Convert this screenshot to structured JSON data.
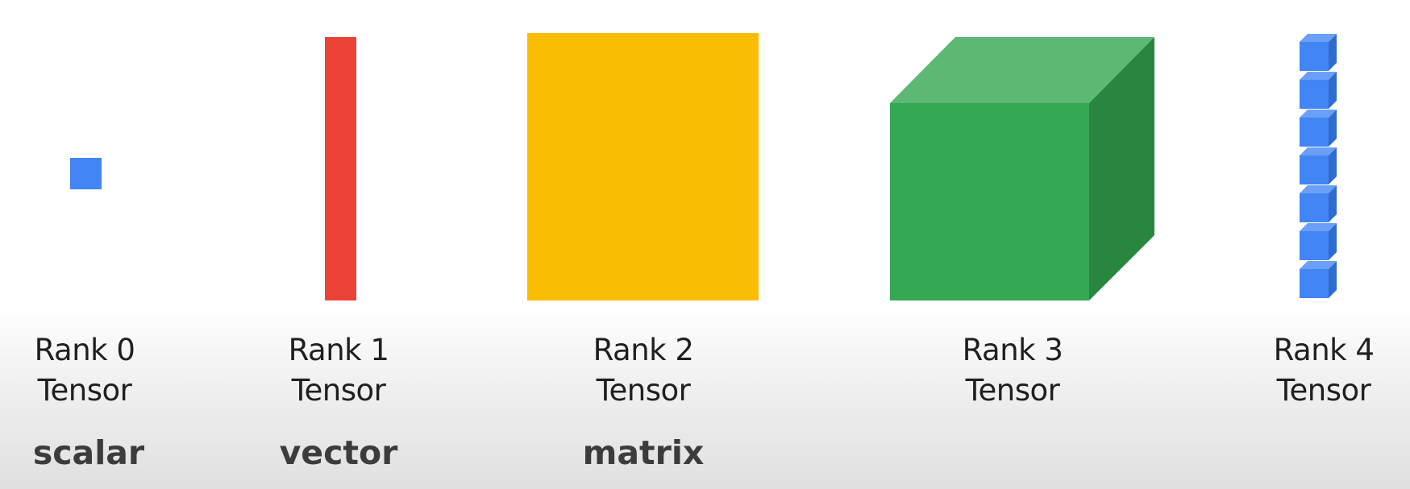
{
  "colors": {
    "scalar": "#4285f4",
    "vector": "#ea4335",
    "matrix": "#fbbc04",
    "cube_front": "#34a853",
    "cube_top": "#5cb872",
    "cube_side": "#288640",
    "rank4_front": "#4285f4",
    "rank4_top": "#6aa0f7",
    "rank4_side": "#2f6bd1"
  },
  "tensors": [
    {
      "rank_label": "Rank 0",
      "kind_label": "Tensor",
      "name": "scalar",
      "icon": "blue-square"
    },
    {
      "rank_label": "Rank 1",
      "kind_label": "Tensor",
      "name": "vector",
      "icon": "red-bar"
    },
    {
      "rank_label": "Rank 2",
      "kind_label": "Tensor",
      "name": "matrix",
      "icon": "yellow-square"
    },
    {
      "rank_label": "Rank 3",
      "kind_label": "Tensor",
      "name": "",
      "icon": "green-cube"
    },
    {
      "rank_label": "Rank 4",
      "kind_label": "Tensor",
      "name": "",
      "icon": "stacked-blue-cubes",
      "cube_count": 7
    }
  ]
}
